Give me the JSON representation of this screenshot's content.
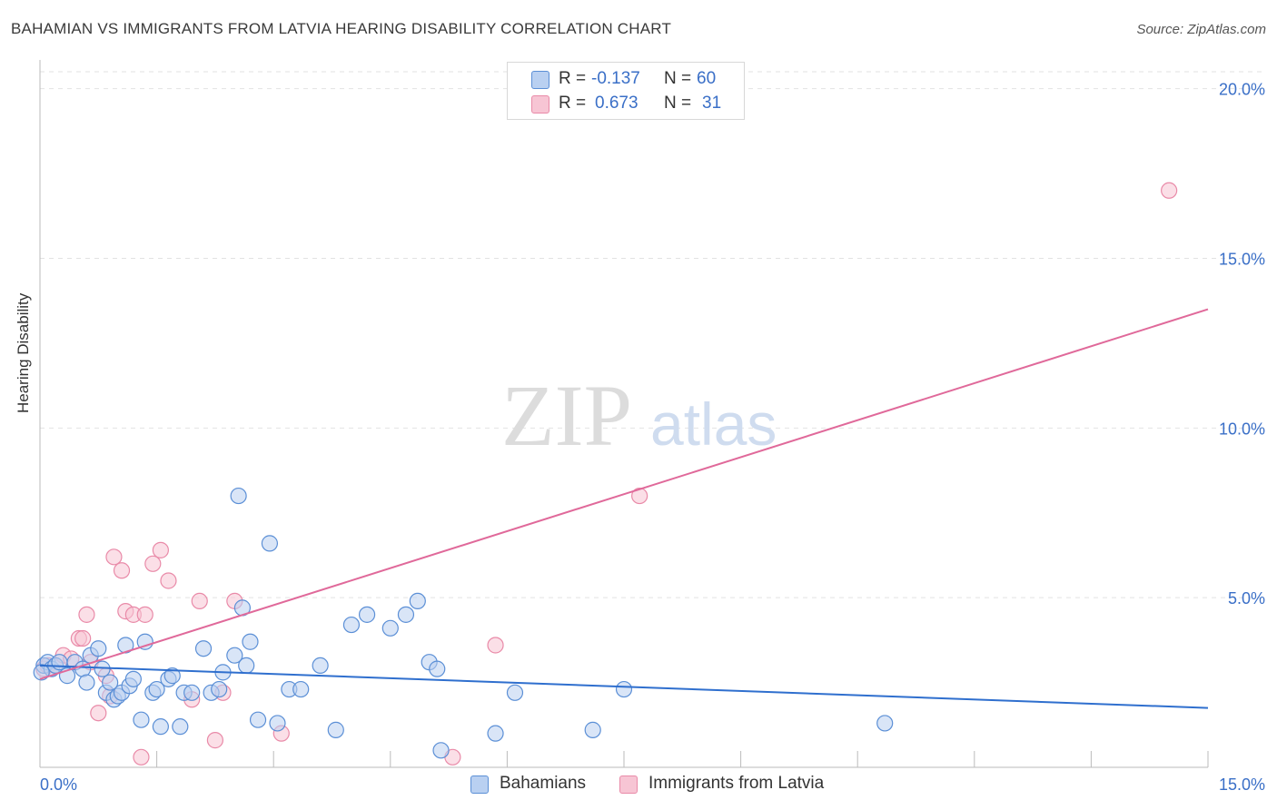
{
  "title": "BAHAMIAN VS IMMIGRANTS FROM LATVIA HEARING DISABILITY CORRELATION CHART",
  "source": "Source: ZipAtlas.com",
  "watermark": {
    "zip": "ZIP",
    "atlas": "atlas"
  },
  "legend": {
    "blue": {
      "r_label": "R =",
      "r_value": "-0.137",
      "n_label": "N =",
      "n_value": "60"
    },
    "pink": {
      "r_label": "R =",
      "r_value": "0.673",
      "n_label": "N =",
      "n_value": "31"
    }
  },
  "colors": {
    "blue_fill": "#b9d0f1",
    "blue_stroke": "#5b8fd6",
    "blue_line": "#2f6fce",
    "pink_fill": "#f7c5d4",
    "pink_stroke": "#e98aa8",
    "pink_line": "#e0699a",
    "tick_text": "#3a6fc7"
  },
  "chart_data": {
    "type": "scatter",
    "title": "BAHAMIAN VS IMMIGRANTS FROM LATVIA HEARING DISABILITY CORRELATION CHART",
    "xlabel": "",
    "ylabel": "Hearing Disability",
    "xlim": [
      0,
      15
    ],
    "ylim": [
      0,
      20.5
    ],
    "x_tick_labels": [
      "0.0%",
      "15.0%"
    ],
    "y_ticks": [
      5,
      10,
      15,
      20
    ],
    "y_tick_labels": [
      "5.0%",
      "10.0%",
      "15.0%",
      "20.0%"
    ],
    "series": [
      {
        "name": "Bahamians",
        "color": "blue",
        "trend": {
          "x": [
            0,
            15
          ],
          "y": [
            3.0,
            1.75
          ]
        },
        "points": [
          [
            0.05,
            3.0
          ],
          [
            0.1,
            3.1
          ],
          [
            0.15,
            2.9
          ],
          [
            0.2,
            3.0
          ],
          [
            0.25,
            3.1
          ],
          [
            0.35,
            2.7
          ],
          [
            0.45,
            3.1
          ],
          [
            0.55,
            2.9
          ],
          [
            0.6,
            2.5
          ],
          [
            0.65,
            3.3
          ],
          [
            0.75,
            3.5
          ],
          [
            0.8,
            2.9
          ],
          [
            0.85,
            2.2
          ],
          [
            0.9,
            2.5
          ],
          [
            0.95,
            2.0
          ],
          [
            1.0,
            2.1
          ],
          [
            1.05,
            2.2
          ],
          [
            1.1,
            3.6
          ],
          [
            1.15,
            2.4
          ],
          [
            1.2,
            2.6
          ],
          [
            1.3,
            1.4
          ],
          [
            1.35,
            3.7
          ],
          [
            1.45,
            2.2
          ],
          [
            1.5,
            2.3
          ],
          [
            1.55,
            1.2
          ],
          [
            1.65,
            2.6
          ],
          [
            1.7,
            2.7
          ],
          [
            1.8,
            1.2
          ],
          [
            1.85,
            2.2
          ],
          [
            1.95,
            2.2
          ],
          [
            2.1,
            3.5
          ],
          [
            2.2,
            2.2
          ],
          [
            2.3,
            2.3
          ],
          [
            2.35,
            2.8
          ],
          [
            2.5,
            3.3
          ],
          [
            2.55,
            8.0
          ],
          [
            2.6,
            4.7
          ],
          [
            2.65,
            3.0
          ],
          [
            2.7,
            3.7
          ],
          [
            2.8,
            1.4
          ],
          [
            2.95,
            6.6
          ],
          [
            3.05,
            1.3
          ],
          [
            3.2,
            2.3
          ],
          [
            3.35,
            2.3
          ],
          [
            3.6,
            3.0
          ],
          [
            3.8,
            1.1
          ],
          [
            4.0,
            4.2
          ],
          [
            4.2,
            4.5
          ],
          [
            4.5,
            4.1
          ],
          [
            4.7,
            4.5
          ],
          [
            4.85,
            4.9
          ],
          [
            5.0,
            3.1
          ],
          [
            5.1,
            2.9
          ],
          [
            5.15,
            0.5
          ],
          [
            5.85,
            1.0
          ],
          [
            6.1,
            2.2
          ],
          [
            7.1,
            1.1
          ],
          [
            7.5,
            2.3
          ],
          [
            10.85,
            1.3
          ],
          [
            0.02,
            2.8
          ]
        ]
      },
      {
        "name": "Immigrants from Latvia",
        "color": "pink",
        "trend": {
          "x": [
            0,
            15
          ],
          "y": [
            2.6,
            13.5
          ]
        },
        "points": [
          [
            0.05,
            2.9
          ],
          [
            0.1,
            3.0
          ],
          [
            0.2,
            3.0
          ],
          [
            0.3,
            3.3
          ],
          [
            0.4,
            3.2
          ],
          [
            0.5,
            3.8
          ],
          [
            0.55,
            3.8
          ],
          [
            0.6,
            4.5
          ],
          [
            0.65,
            3.1
          ],
          [
            0.75,
            1.6
          ],
          [
            0.85,
            2.7
          ],
          [
            0.9,
            2.1
          ],
          [
            0.95,
            6.2
          ],
          [
            1.05,
            5.8
          ],
          [
            1.1,
            4.6
          ],
          [
            1.2,
            4.5
          ],
          [
            1.3,
            0.3
          ],
          [
            1.35,
            4.5
          ],
          [
            1.45,
            6.0
          ],
          [
            1.55,
            6.4
          ],
          [
            1.65,
            5.5
          ],
          [
            1.95,
            2.0
          ],
          [
            2.05,
            4.9
          ],
          [
            2.25,
            0.8
          ],
          [
            2.35,
            2.2
          ],
          [
            2.5,
            4.9
          ],
          [
            3.1,
            1.0
          ],
          [
            5.3,
            0.3
          ],
          [
            5.85,
            3.6
          ],
          [
            7.7,
            8.0
          ],
          [
            14.5,
            17.0
          ]
        ]
      }
    ]
  }
}
